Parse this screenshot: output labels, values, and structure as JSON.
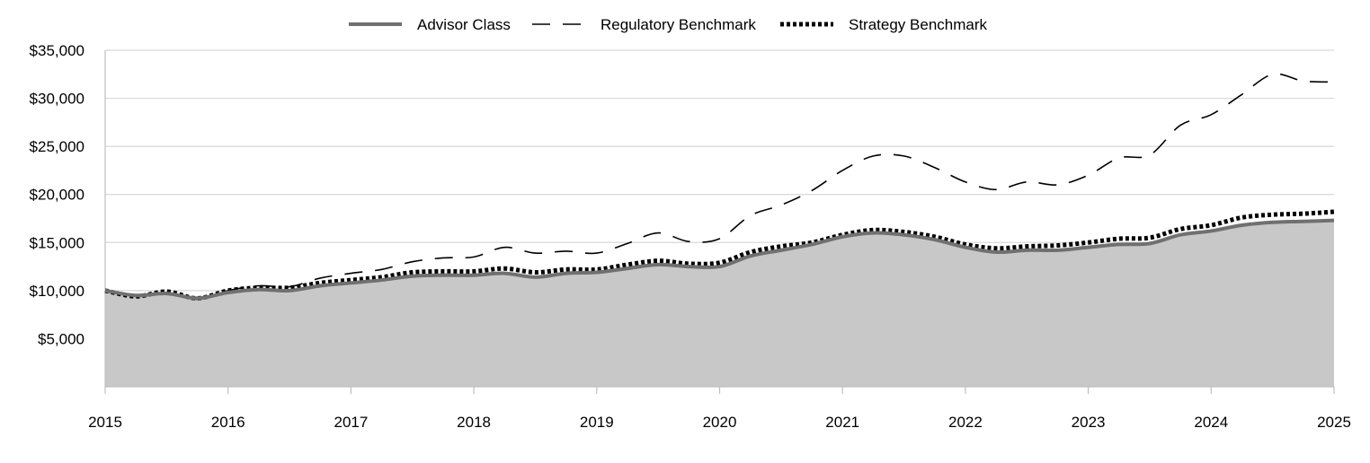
{
  "chart_data": {
    "type": "area",
    "title": "",
    "xlabel": "",
    "ylabel": "",
    "xlim": [
      2015,
      2025
    ],
    "ylim": [
      0,
      35000
    ],
    "y_ticks": [
      5000,
      10000,
      15000,
      20000,
      25000,
      30000,
      35000
    ],
    "y_tick_labels": [
      "$5,000",
      "$10,000",
      "$15,000",
      "$20,000",
      "$25,000",
      "$30,000",
      "$35,000"
    ],
    "x_ticks": [
      2015,
      2016,
      2017,
      2018,
      2019,
      2020,
      2021,
      2022,
      2023,
      2024,
      2025
    ],
    "x_tick_labels": [
      "2015",
      "2016",
      "2017",
      "2018",
      "2019",
      "2020",
      "2021",
      "2022",
      "2023",
      "2024",
      "2025"
    ],
    "grid": "horizontal",
    "legend_position": "top-center",
    "colors": {
      "area_fill": "#c8c8c8",
      "advisor_line": "#707070",
      "regulatory_line": "#000000",
      "strategy_line": "#000000",
      "grid": "#d9d9d9"
    },
    "series": [
      {
        "name": "Advisor Class",
        "style": "solid-filled",
        "x": [
          2015,
          2015.25,
          2015.5,
          2015.75,
          2016,
          2016.25,
          2016.5,
          2016.75,
          2017,
          2017.25,
          2017.5,
          2017.75,
          2018,
          2018.25,
          2018.5,
          2018.75,
          2019,
          2019.25,
          2019.5,
          2019.75,
          2020,
          2020.25,
          2020.5,
          2020.75,
          2021,
          2021.25,
          2021.5,
          2021.75,
          2022,
          2022.25,
          2022.5,
          2022.75,
          2023,
          2023.25,
          2023.5,
          2023.75,
          2024,
          2024.25,
          2024.5,
          2024.75,
          2025
        ],
        "y": [
          10000,
          9500,
          9700,
          9200,
          9800,
          10100,
          10000,
          10500,
          10800,
          11100,
          11500,
          11600,
          11600,
          11800,
          11400,
          11800,
          11900,
          12300,
          12700,
          12500,
          12500,
          13600,
          14200,
          14800,
          15600,
          16000,
          15800,
          15300,
          14500,
          14000,
          14200,
          14200,
          14500,
          14800,
          14900,
          15800,
          16200,
          16800,
          17100,
          17200,
          17300
        ]
      },
      {
        "name": "Regulatory Benchmark",
        "style": "dashed",
        "x": [
          2015,
          2015.25,
          2015.5,
          2015.75,
          2016,
          2016.25,
          2016.5,
          2016.75,
          2017,
          2017.25,
          2017.5,
          2017.75,
          2018,
          2018.25,
          2018.5,
          2018.75,
          2019,
          2019.25,
          2019.5,
          2019.75,
          2020,
          2020.25,
          2020.5,
          2020.75,
          2021,
          2021.25,
          2021.5,
          2021.75,
          2022,
          2022.25,
          2022.5,
          2022.75,
          2023,
          2023.25,
          2023.5,
          2023.75,
          2024,
          2024.25,
          2024.5,
          2024.75,
          2025
        ],
        "y": [
          10000,
          9400,
          9800,
          9100,
          10000,
          10500,
          10400,
          11300,
          11800,
          12200,
          13000,
          13400,
          13500,
          14500,
          13900,
          14100,
          13900,
          14900,
          16000,
          15100,
          15400,
          17800,
          18900,
          20400,
          22500,
          24000,
          24000,
          22800,
          21300,
          20500,
          21300,
          21000,
          22000,
          23800,
          24100,
          27200,
          28300,
          30400,
          32500,
          31800,
          31700
        ]
      },
      {
        "name": "Strategy Benchmark",
        "style": "dotted",
        "x": [
          2015,
          2015.25,
          2015.5,
          2015.75,
          2016,
          2016.25,
          2016.5,
          2016.75,
          2017,
          2017.25,
          2017.5,
          2017.75,
          2018,
          2018.25,
          2018.5,
          2018.75,
          2019,
          2019.25,
          2019.5,
          2019.75,
          2020,
          2020.25,
          2020.5,
          2020.75,
          2021,
          2021.25,
          2021.5,
          2021.75,
          2022,
          2022.25,
          2022.5,
          2022.75,
          2023,
          2023.25,
          2023.5,
          2023.75,
          2024,
          2024.25,
          2024.5,
          2024.75,
          2025
        ],
        "y": [
          10000,
          9400,
          9900,
          9200,
          10000,
          10300,
          10300,
          10800,
          11100,
          11400,
          11900,
          12000,
          12000,
          12300,
          11900,
          12200,
          12200,
          12700,
          13100,
          12800,
          12900,
          14000,
          14600,
          15000,
          15800,
          16300,
          16100,
          15600,
          14800,
          14400,
          14600,
          14700,
          15000,
          15400,
          15500,
          16400,
          16800,
          17600,
          17900,
          18000,
          18200
        ]
      }
    ]
  }
}
